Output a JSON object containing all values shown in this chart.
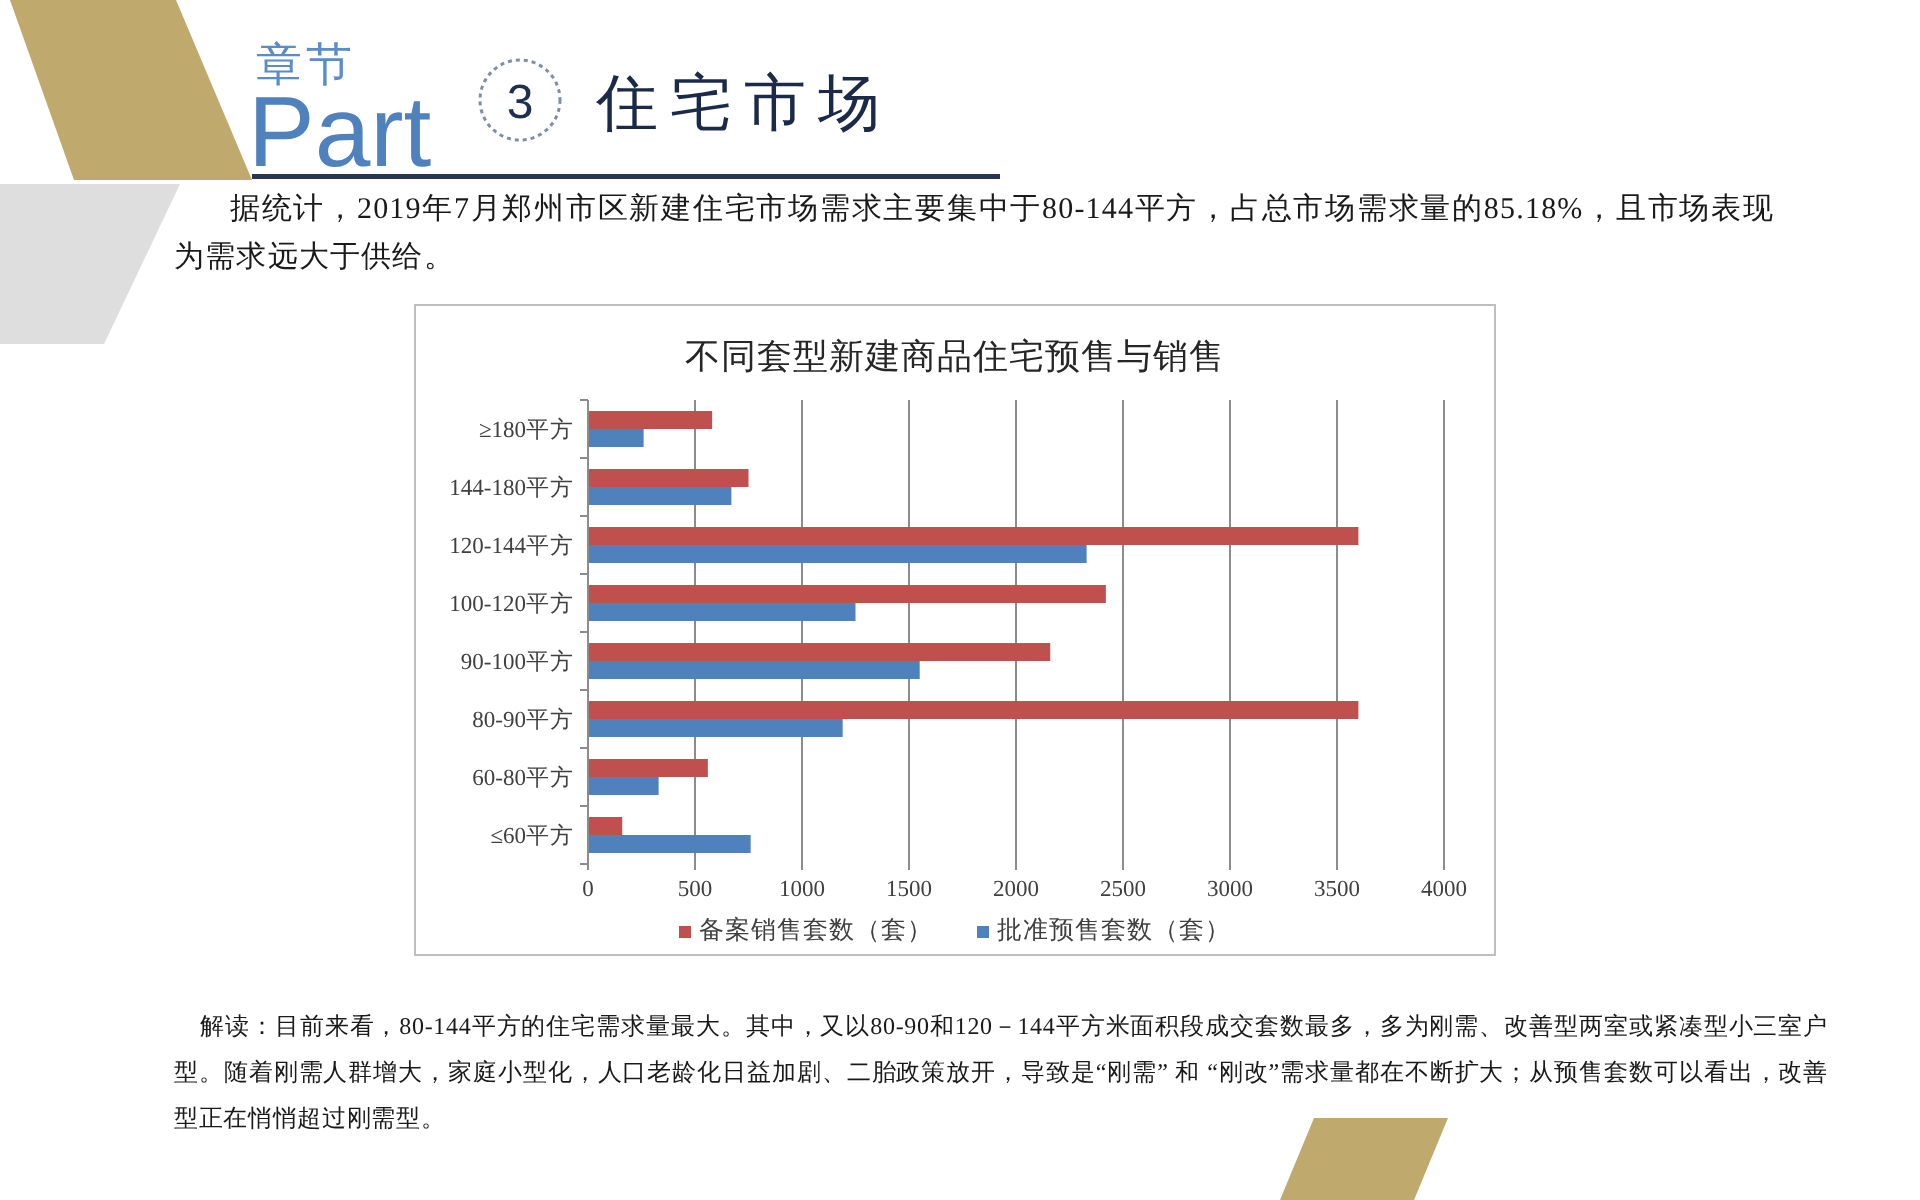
{
  "chart_data": {
    "type": "bar",
    "orientation": "horizontal",
    "title": "不同套型新建商品住宅预售与销售",
    "categories": [
      "≥180平方",
      "144-180平方",
      "120-144平方",
      "100-120平方",
      "90-100平方",
      "80-90平方",
      "60-80平方",
      "≤60平方"
    ],
    "series": [
      {
        "name": "备案销售套数（套）",
        "color": "#c0504d",
        "values": [
          580,
          750,
          3600,
          2420,
          2160,
          3600,
          560,
          160
        ]
      },
      {
        "name": "批准预售套数（套）",
        "color": "#4f81bd",
        "values": [
          260,
          670,
          2330,
          1250,
          1550,
          1190,
          330,
          760
        ]
      }
    ],
    "xlim": [
      0,
      4000
    ],
    "xticks": [
      0,
      500,
      1000,
      1500,
      2000,
      2500,
      3000,
      3500,
      4000
    ],
    "grid": "x",
    "legend": "bottom",
    "annotations": [
      "章节",
      "Part",
      "3",
      "住宅市场",
      "据统计，2019年7月郑州市区新建住宅市场需求主要集中于80-144平方，占总市场需求量的85.18%，且市场表现为需求远大于供给。",
      "解读：目前来看，80-144平方的住宅需求量最大。其中，又以80-90和120－144平方米面积段成交套数最多，多为刚需、改善型两室或紧凑型小三室户型。随着刚需人群增大，家庭小型化，人口老龄化日益加剧、二胎政策放开，导致是“刚需” 和 “刚改”需求量都在不断扩大；从预售套数可以看出，改善型正在悄悄超过刚需型。"
    ]
  }
}
